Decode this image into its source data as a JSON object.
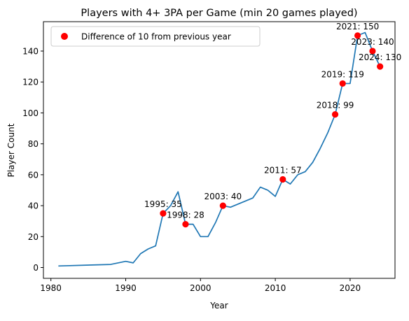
{
  "chart_data": {
    "type": "line",
    "title": "Players with 4+ 3PA per Game (min 20 games played)",
    "xlabel": "Year",
    "ylabel": "Player Count",
    "xlim": [
      1979,
      2026
    ],
    "ylim": [
      -7,
      159
    ],
    "xticks": [
      1980,
      1990,
      2000,
      2010,
      2020
    ],
    "yticks": [
      0,
      20,
      40,
      60,
      80,
      100,
      120,
      140
    ],
    "grid": false,
    "legend_position": "top-left",
    "series": [
      {
        "color": "#1f77b4",
        "points": [
          [
            1981,
            1
          ],
          [
            1988,
            2
          ],
          [
            1990,
            4
          ],
          [
            1991,
            3
          ],
          [
            1992,
            9
          ],
          [
            1993,
            12
          ],
          [
            1994,
            14
          ],
          [
            1995,
            35
          ],
          [
            1996,
            40
          ],
          [
            1997,
            49
          ],
          [
            1998,
            28
          ],
          [
            1999,
            28
          ],
          [
            2000,
            20
          ],
          [
            2001,
            20
          ],
          [
            2002,
            29
          ],
          [
            2003,
            40
          ],
          [
            2004,
            39
          ],
          [
            2007,
            45
          ],
          [
            2008,
            52
          ],
          [
            2009,
            50
          ],
          [
            2010,
            46
          ],
          [
            2011,
            57
          ],
          [
            2012,
            54
          ],
          [
            2013,
            60
          ],
          [
            2014,
            62
          ],
          [
            2015,
            68
          ],
          [
            2016,
            77
          ],
          [
            2017,
            87
          ],
          [
            2018,
            99
          ],
          [
            2019,
            119
          ],
          [
            2020,
            119
          ],
          [
            2021,
            150
          ],
          [
            2022,
            152
          ],
          [
            2023,
            140
          ],
          [
            2024,
            130
          ]
        ]
      },
      {
        "name": "Difference of 10 from previous year",
        "type": "scatter",
        "color": "#ff0000",
        "points": [
          [
            1995,
            35
          ],
          [
            1998,
            28
          ],
          [
            2003,
            40
          ],
          [
            2011,
            57
          ],
          [
            2018,
            99
          ],
          [
            2019,
            119
          ],
          [
            2021,
            150
          ],
          [
            2023,
            140
          ],
          [
            2024,
            130
          ]
        ],
        "labels": [
          "1995: 35",
          "1998: 28",
          "2003: 40",
          "2011: 57",
          "2018: 99",
          "2019: 119",
          "2021: 150",
          "2023: 140",
          "2024: 130"
        ]
      }
    ]
  }
}
